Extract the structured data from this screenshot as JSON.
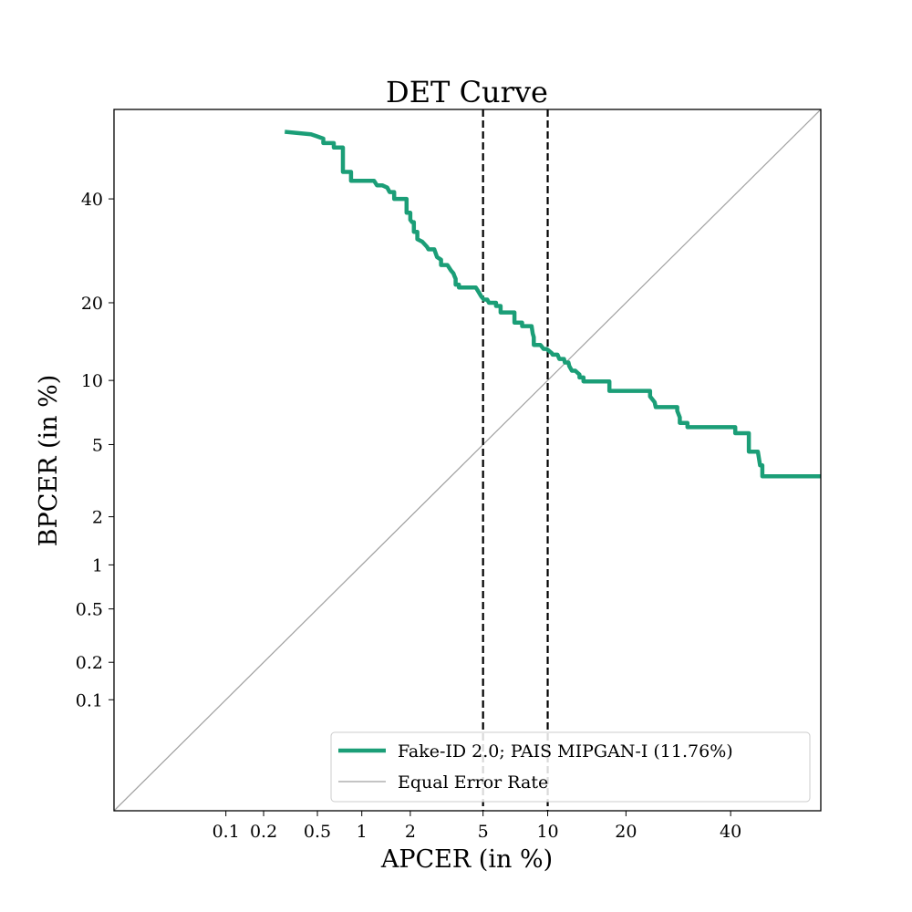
{
  "chart_data": {
    "type": "line",
    "title": "DET Curve",
    "xlabel": "APCER (in %)",
    "ylabel": "BPCER (in %)",
    "scale": "probit",
    "xlim": [
      0.01,
      60
    ],
    "ylim": [
      0.01,
      60
    ],
    "xticks": [
      0.1,
      0.2,
      0.5,
      1,
      2,
      5,
      10,
      20,
      40
    ],
    "xtick_labels": [
      "0.1",
      "0.2",
      "0.5",
      "1",
      "2",
      "5",
      "10",
      "20",
      "40"
    ],
    "yticks": [
      0.1,
      0.2,
      0.5,
      1,
      2,
      5,
      10,
      20,
      40
    ],
    "ytick_labels": [
      "0.1",
      "0.2",
      "0.5",
      "1",
      "2",
      "5",
      "10",
      "20",
      "40"
    ],
    "reference_lines": [
      5,
      10
    ],
    "legend_position": "lower-right",
    "series": [
      {
        "name": "Fake-ID 2.0; PAIS MIPGAN-I (11.76%)",
        "color": "#1b9e77",
        "x": [
          0.3,
          0.45,
          0.5,
          0.55,
          0.55,
          0.65,
          0.65,
          0.75,
          0.75,
          0.85,
          0.85,
          1.2,
          1.25,
          1.35,
          1.45,
          1.5,
          1.6,
          1.6,
          1.9,
          1.9,
          2.0,
          2.0,
          2.05,
          2.1,
          2.1,
          2.2,
          2.2,
          2.35,
          2.5,
          2.55,
          2.75,
          2.85,
          3.0,
          3.0,
          3.25,
          3.4,
          3.5,
          3.55,
          3.6,
          3.6,
          3.75,
          3.75,
          4.6,
          4.7,
          4.9,
          5.05,
          5.25,
          5.35,
          5.8,
          5.8,
          6.1,
          6.1,
          7.1,
          7.1,
          7.7,
          7.7,
          8.5,
          8.6,
          8.7,
          8.7,
          9.3,
          9.6,
          9.9,
          10.4,
          10.5,
          11.0,
          11.2,
          11.7,
          11.8,
          12.2,
          12.3,
          12.6,
          13.0,
          13.5,
          13.5,
          14.0,
          14.0,
          17.5,
          17.5,
          24.0,
          24.0,
          24.8,
          25.0,
          29.0,
          29.0,
          29.5,
          29.5,
          31.0,
          31.0,
          41.0,
          41.0,
          44.0,
          44.0,
          46.0,
          46.5,
          47.0,
          47.0,
          60.0
        ],
        "y": [
          55.0,
          54.5,
          54.0,
          53.5,
          52.5,
          52.5,
          51.5,
          51.5,
          46.0,
          46.0,
          44.0,
          44.0,
          43.0,
          43.0,
          42.5,
          41.5,
          41.5,
          40.0,
          40.0,
          37.0,
          37.0,
          35.5,
          35.0,
          35.0,
          33.0,
          33.0,
          31.5,
          31.0,
          30.0,
          29.5,
          29.5,
          28.0,
          27.5,
          26.5,
          26.5,
          25.5,
          25.0,
          24.5,
          24.0,
          23.0,
          23.0,
          22.5,
          22.5,
          22.0,
          21.0,
          20.5,
          20.5,
          20.0,
          20.0,
          19.5,
          19.5,
          18.5,
          18.5,
          17.0,
          17.0,
          16.5,
          16.5,
          15.5,
          15.0,
          14.0,
          14.0,
          13.5,
          13.5,
          13.0,
          12.8,
          12.8,
          12.3,
          12.3,
          11.9,
          11.9,
          11.5,
          11.0,
          11.0,
          10.6,
          10.3,
          10.3,
          9.9,
          9.9,
          9.0,
          9.0,
          8.5,
          8.0,
          7.6,
          7.6,
          7.3,
          6.8,
          6.4,
          6.4,
          6.1,
          6.1,
          5.7,
          5.7,
          4.6,
          4.6,
          3.9,
          3.9,
          3.4,
          3.4
        ]
      },
      {
        "name": "Equal Error Rate",
        "color": "#a0a0a0"
      }
    ]
  }
}
